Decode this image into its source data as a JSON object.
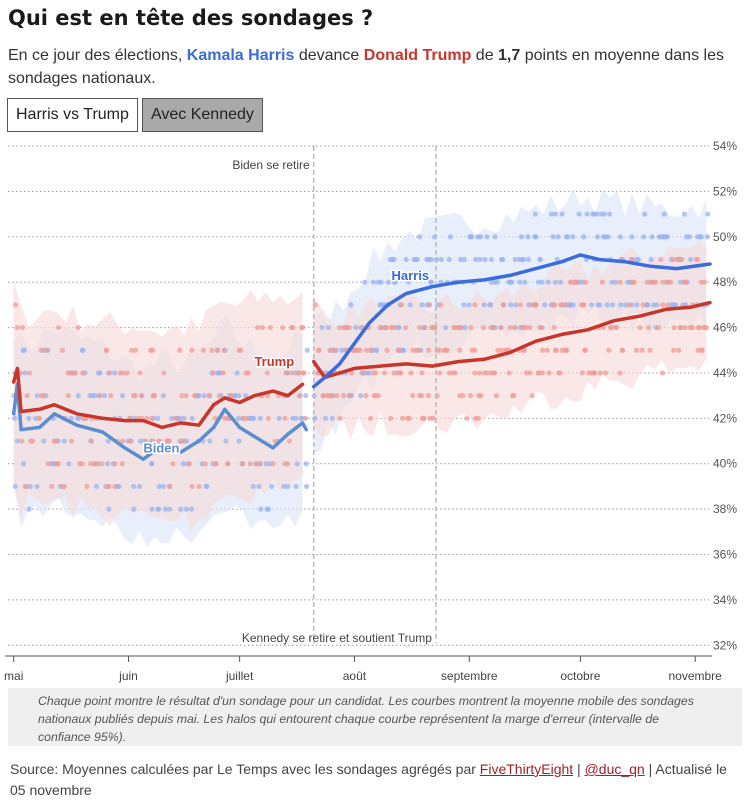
{
  "header": {
    "title": "Qui est en tête des sondages ?",
    "subtitle_pre": "En ce jour des élections, ",
    "harris_name": "Kamala Harris",
    "subtitle_mid": " devance ",
    "trump_name": "Donald Trump",
    "subtitle_de": " de ",
    "gap": "1,7",
    "subtitle_post": " points en moyenne dans les sondages nationaux."
  },
  "toggles": {
    "active_label": "Harris vs Trump",
    "inactive_label": "Avec Kennedy"
  },
  "colors": {
    "harris": "#3b6bdc",
    "biden": "#5b8ed0",
    "trump": "#c8352b",
    "harris_band": "#dce6f7",
    "trump_band": "#f6dcda",
    "harris_dot": "#9bb3ee",
    "trump_dot": "#ee9e98",
    "dot_purple": "#9f8fd2"
  },
  "chart_data": {
    "type": "line",
    "ylim": [
      31,
      54
    ],
    "xrange": [
      "2024-04-30",
      "2024-11-05"
    ],
    "y_ticks": [
      {
        "value": 32,
        "label": "32%"
      },
      {
        "value": 34,
        "label": "34%"
      },
      {
        "value": 36,
        "label": "36%"
      },
      {
        "value": 38,
        "label": "38%"
      },
      {
        "value": 40,
        "label": "40%"
      },
      {
        "value": 42,
        "label": "42%"
      },
      {
        "value": 44,
        "label": "44%"
      },
      {
        "value": 46,
        "label": "46%"
      },
      {
        "value": 48,
        "label": "48%"
      },
      {
        "value": 50,
        "label": "50%"
      },
      {
        "value": 52,
        "label": "52%"
      },
      {
        "value": 54,
        "label": "54%"
      }
    ],
    "x_ticks": [
      {
        "date": "2024-05-01",
        "label": "mai"
      },
      {
        "date": "2024-06-01",
        "label": "juin"
      },
      {
        "date": "2024-07-01",
        "label": "juillet"
      },
      {
        "date": "2024-08-01",
        "label": "août"
      },
      {
        "date": "2024-09-01",
        "label": "septembre"
      },
      {
        "date": "2024-10-01",
        "label": "octobre"
      },
      {
        "date": "2024-11-01",
        "label": "novembre"
      }
    ],
    "events": [
      {
        "date": "2024-07-21",
        "label": "Biden se retire",
        "label_pos": "top"
      },
      {
        "date": "2024-08-23",
        "label": "Kennedy se retire et soutient Trump",
        "label_pos": "bottom"
      }
    ],
    "series": [
      {
        "name": "Biden",
        "color_key": "biden",
        "label_point": {
          "date": "2024-06-05",
          "value": 40.5
        },
        "points": [
          [
            "2024-05-01",
            42.2
          ],
          [
            "2024-05-02",
            43.5
          ],
          [
            "2024-05-03",
            41.5
          ],
          [
            "2024-05-08",
            41.6
          ],
          [
            "2024-05-12",
            42.2
          ],
          [
            "2024-05-18",
            41.7
          ],
          [
            "2024-05-25",
            41.4
          ],
          [
            "2024-05-31",
            40.7
          ],
          [
            "2024-06-05",
            40.2
          ],
          [
            "2024-06-10",
            40.8
          ],
          [
            "2024-06-15",
            40.5
          ],
          [
            "2024-06-20",
            41.0
          ],
          [
            "2024-06-24",
            41.6
          ],
          [
            "2024-06-27",
            42.4
          ],
          [
            "2024-07-01",
            41.6
          ],
          [
            "2024-07-05",
            41.2
          ],
          [
            "2024-07-10",
            40.7
          ],
          [
            "2024-07-14",
            41.3
          ],
          [
            "2024-07-18",
            41.8
          ],
          [
            "2024-07-19",
            41.5
          ]
        ]
      },
      {
        "name": "Trump",
        "color_key": "trump",
        "label_point": {
          "date": "2024-07-05",
          "value": 44.3
        },
        "points": [
          [
            "2024-05-01",
            43.6
          ],
          [
            "2024-05-02",
            44.2
          ],
          [
            "2024-05-03",
            42.3
          ],
          [
            "2024-05-08",
            42.4
          ],
          [
            "2024-05-12",
            42.6
          ],
          [
            "2024-05-18",
            42.2
          ],
          [
            "2024-05-25",
            42.0
          ],
          [
            "2024-05-31",
            41.9
          ],
          [
            "2024-06-05",
            41.9
          ],
          [
            "2024-06-10",
            41.6
          ],
          [
            "2024-06-15",
            41.8
          ],
          [
            "2024-06-20",
            41.7
          ],
          [
            "2024-06-24",
            42.6
          ],
          [
            "2024-06-27",
            42.9
          ],
          [
            "2024-07-01",
            42.7
          ],
          [
            "2024-07-05",
            43.0
          ],
          [
            "2024-07-10",
            43.2
          ],
          [
            "2024-07-14",
            43.0
          ],
          [
            "2024-07-18",
            43.5
          ],
          [
            "2024-07-21",
            44.5
          ],
          [
            "2024-07-24",
            43.8
          ],
          [
            "2024-07-28",
            44.0
          ],
          [
            "2024-08-01",
            44.2
          ],
          [
            "2024-08-08",
            44.3
          ],
          [
            "2024-08-15",
            44.4
          ],
          [
            "2024-08-22",
            44.3
          ],
          [
            "2024-08-29",
            44.5
          ],
          [
            "2024-09-05",
            44.6
          ],
          [
            "2024-09-12",
            44.9
          ],
          [
            "2024-09-19",
            45.4
          ],
          [
            "2024-09-26",
            45.7
          ],
          [
            "2024-10-03",
            45.9
          ],
          [
            "2024-10-10",
            46.3
          ],
          [
            "2024-10-17",
            46.5
          ],
          [
            "2024-10-24",
            46.8
          ],
          [
            "2024-10-31",
            46.9
          ],
          [
            "2024-11-05",
            47.1
          ]
        ]
      },
      {
        "name": "Harris",
        "color_key": "harris",
        "label_point": {
          "date": "2024-08-11",
          "value": 48.1
        },
        "points": [
          [
            "2024-07-21",
            43.4
          ],
          [
            "2024-07-24",
            43.8
          ],
          [
            "2024-07-28",
            44.4
          ],
          [
            "2024-08-01",
            45.3
          ],
          [
            "2024-08-05",
            46.2
          ],
          [
            "2024-08-10",
            47.0
          ],
          [
            "2024-08-15",
            47.5
          ],
          [
            "2024-08-22",
            47.8
          ],
          [
            "2024-08-29",
            48.0
          ],
          [
            "2024-09-05",
            48.1
          ],
          [
            "2024-09-12",
            48.3
          ],
          [
            "2024-09-19",
            48.6
          ],
          [
            "2024-09-26",
            48.9
          ],
          [
            "2024-10-01",
            49.2
          ],
          [
            "2024-10-06",
            49.0
          ],
          [
            "2024-10-13",
            48.9
          ],
          [
            "2024-10-20",
            48.7
          ],
          [
            "2024-10-27",
            48.6
          ],
          [
            "2024-11-05",
            48.8
          ]
        ]
      }
    ]
  },
  "note": "Chaque point montre le résultat d'un sondage pour un candidat. Les courbes montrent la moyenne mobile des sondages nationaux publiés depuis mai. Les halos qui entourent chaque courbe représentent la marge d'erreur (intervalle de confiance 95%).",
  "source": {
    "prefix": "Source: Moyennes calculées par Le Temps avec les sondages agrégés par ",
    "link1": "FiveThirtyEight",
    "sep": " | ",
    "link2": "@duc_qn",
    "suffix": " | Actualisé le 05 novembre"
  }
}
